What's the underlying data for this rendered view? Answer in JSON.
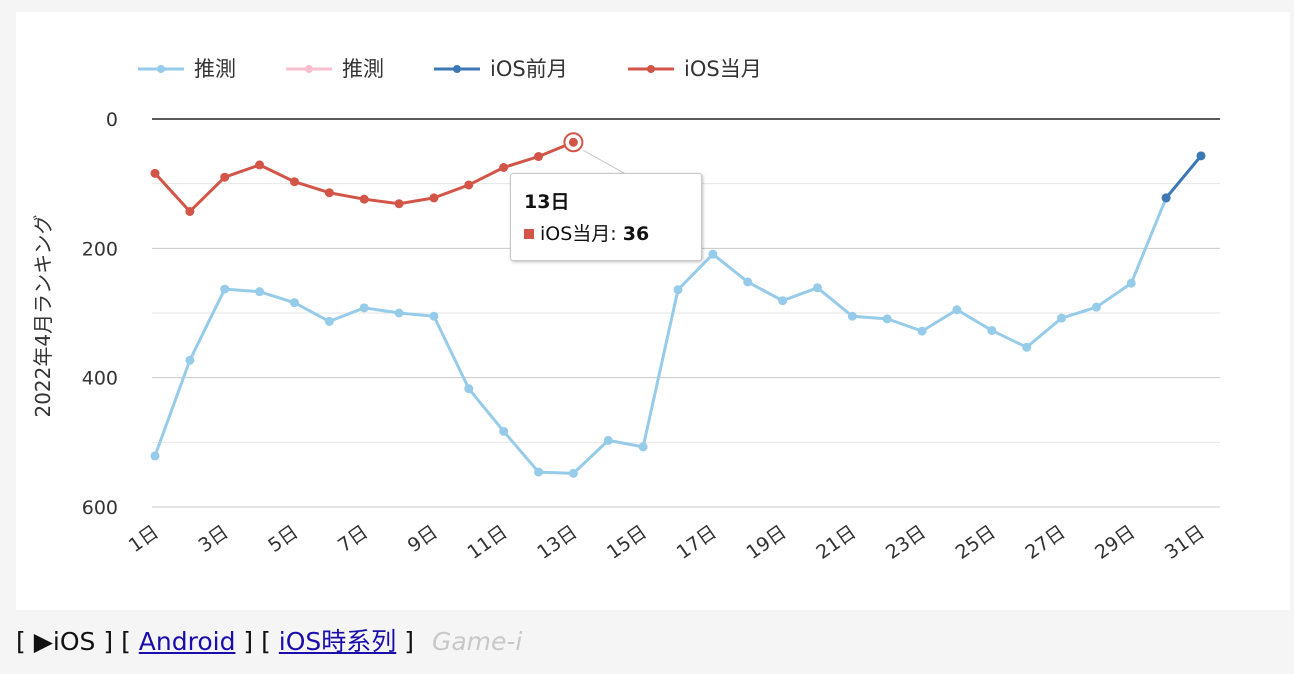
{
  "chart_data": {
    "type": "line",
    "ylabel": "2022年4月ランキング",
    "yticks": [
      "0",
      "200",
      "400",
      "600"
    ],
    "ylim": [
      0,
      600
    ],
    "y_reversed": true,
    "grid": true,
    "legend_position": "top-left",
    "x_categories": [
      "1日",
      "2日",
      "3日",
      "4日",
      "5日",
      "6日",
      "7日",
      "8日",
      "9日",
      "10日",
      "11日",
      "12日",
      "13日",
      "14日",
      "15日",
      "16日",
      "17日",
      "18日",
      "19日",
      "20日",
      "21日",
      "22日",
      "23日",
      "24日",
      "25日",
      "26日",
      "27日",
      "28日",
      "29日",
      "30日",
      "31日"
    ],
    "x_tick_labels": [
      "1日",
      "3日",
      "5日",
      "7日",
      "9日",
      "11日",
      "13日",
      "15日",
      "17日",
      "19日",
      "21日",
      "23日",
      "25日",
      "27日",
      "29日",
      "31日"
    ],
    "series": [
      {
        "name": "推測",
        "color": "#96cce9",
        "values": [
          521,
          373,
          263,
          267,
          284,
          313,
          292,
          300,
          305,
          417,
          483,
          546,
          548,
          497,
          507,
          264,
          209,
          252,
          281,
          261,
          305,
          309,
          328,
          295,
          327,
          353,
          308,
          291,
          254,
          122,
          null
        ]
      },
      {
        "name": "推測",
        "color": "#f7bfcf",
        "values": []
      },
      {
        "name": "iOS前月",
        "color": "#3c78b4",
        "values": [
          null,
          null,
          null,
          null,
          null,
          null,
          null,
          null,
          null,
          null,
          null,
          null,
          null,
          null,
          null,
          null,
          null,
          null,
          null,
          null,
          null,
          null,
          null,
          null,
          null,
          null,
          null,
          null,
          null,
          122,
          57
        ]
      },
      {
        "name": "iOS当月",
        "color": "#d25548",
        "values": [
          84,
          143,
          90,
          71,
          97,
          114,
          124,
          131,
          122,
          102,
          75,
          58,
          36,
          null,
          null,
          null,
          null,
          null,
          null,
          null,
          null,
          null,
          null,
          null,
          null,
          null,
          null,
          null,
          null,
          null,
          null
        ]
      }
    ],
    "tooltip": {
      "title": "13日",
      "series_name": "iOS当月",
      "label": "iOS当月: ",
      "value": "36",
      "color": "#d25548"
    }
  },
  "footer": {
    "open1": "[ ",
    "current": "▶iOS",
    "close1": " ]",
    "open2": "[ ",
    "android": "Android",
    "close2": " ]",
    "open3": "[ ",
    "timeline": "iOS時系列",
    "close3": " ]",
    "brand": "Game-i"
  }
}
